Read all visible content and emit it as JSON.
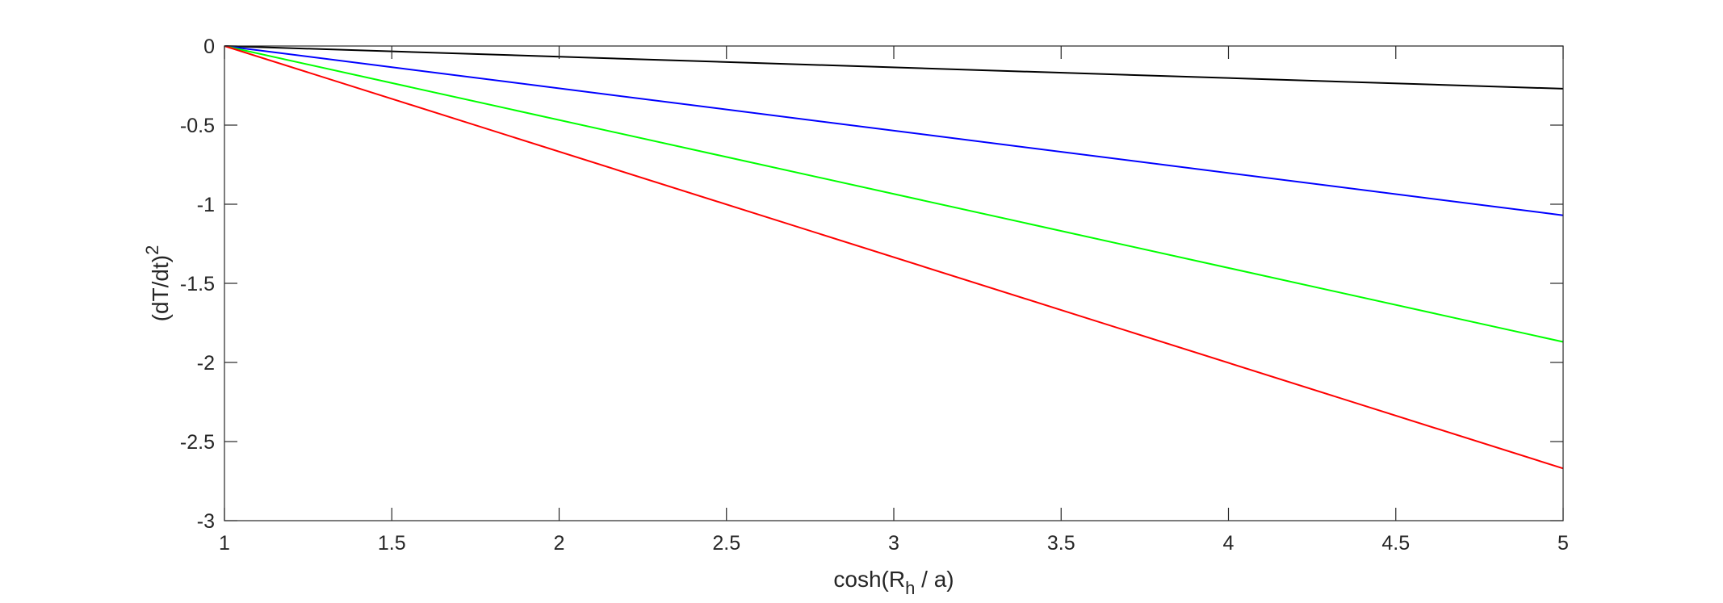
{
  "chart_data": {
    "type": "line",
    "xlabel_parts": {
      "pre": "cosh(R",
      "sub": "h",
      "post": " / a)"
    },
    "ylabel_parts": {
      "main": "(dT/dt)",
      "sup": "2"
    },
    "xlim": [
      1,
      5
    ],
    "ylim": [
      -3,
      0
    ],
    "xticks": [
      1,
      1.5,
      2,
      2.5,
      3,
      3.5,
      4,
      4.5,
      5
    ],
    "xtick_labels": [
      "1",
      "1.5",
      "2",
      "2.5",
      "3",
      "3.5",
      "4",
      "4.5",
      "5"
    ],
    "yticks": [
      0,
      -0.5,
      -1,
      -1.5,
      -2,
      -2.5,
      -3
    ],
    "ytick_labels": [
      "0",
      "-0.5",
      "-1",
      "-1.5",
      "-2",
      "-2.5",
      "-3"
    ],
    "grid": false,
    "box": true,
    "series": [
      {
        "color": "#000000",
        "x": [
          1,
          5
        ],
        "y": [
          0,
          -0.27
        ]
      },
      {
        "color": "#0000ff",
        "x": [
          1,
          5
        ],
        "y": [
          0,
          -1.07
        ]
      },
      {
        "color": "#00ff00",
        "x": [
          1,
          5
        ],
        "y": [
          0,
          -1.87
        ]
      },
      {
        "color": "#ff0000",
        "x": [
          1,
          5
        ],
        "y": [
          0,
          -2.67
        ]
      }
    ]
  }
}
